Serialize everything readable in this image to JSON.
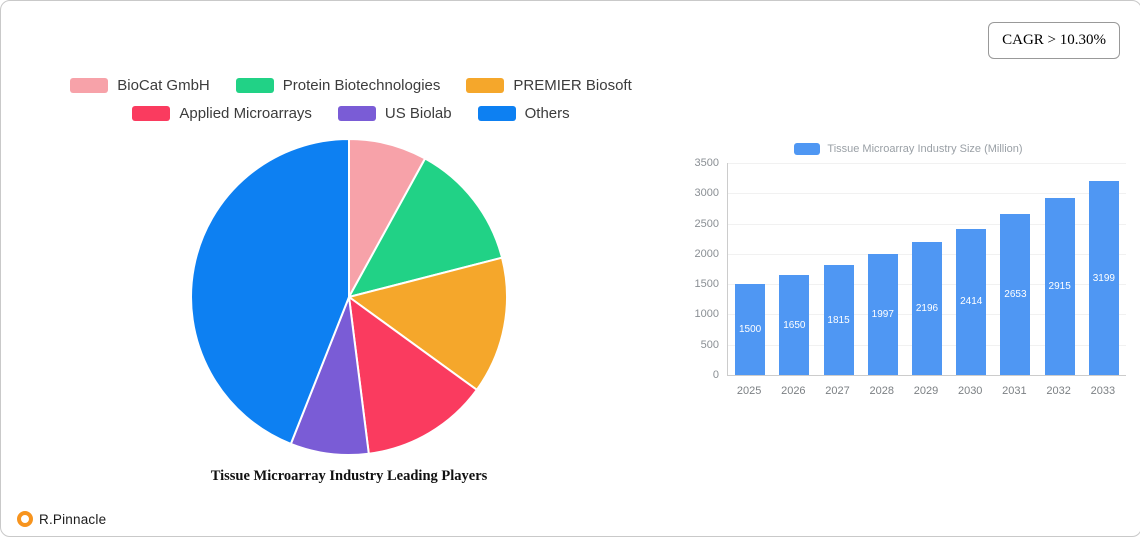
{
  "cagr_badge": "CAGR > 10.30%",
  "brand": "R.Pinnacle",
  "chart_data": [
    {
      "type": "pie",
      "title": "Tissue Microarray Industry Leading Players",
      "labels": [
        "BioCat GmbH",
        "Protein Biotechnologies",
        "PREMIER Biosoft",
        "Applied Microarrays",
        "US Biolab",
        "Others"
      ],
      "values": [
        8,
        13,
        14,
        13,
        8,
        44
      ],
      "colors": [
        "#f7a2a9",
        "#21d286",
        "#f5a72b",
        "#fa3b5f",
        "#7a5cd6",
        "#0d80f2"
      ],
      "legend_position": "top",
      "legend_rows": [
        3,
        3
      ]
    },
    {
      "type": "bar",
      "legend": "Tissue Microarray Industry Size (Million)",
      "categories": [
        "2025",
        "2026",
        "2027",
        "2028",
        "2029",
        "2030",
        "2031",
        "2032",
        "2033"
      ],
      "values": [
        1500,
        1650,
        1815,
        1997,
        2196,
        2414,
        2653,
        2915,
        3199
      ],
      "bar_color": "#4f97f3",
      "value_label_color": "#ffffff",
      "ylim": [
        0,
        3500
      ],
      "ytick_step": 500,
      "grid": true,
      "legend_position": "top"
    }
  ]
}
